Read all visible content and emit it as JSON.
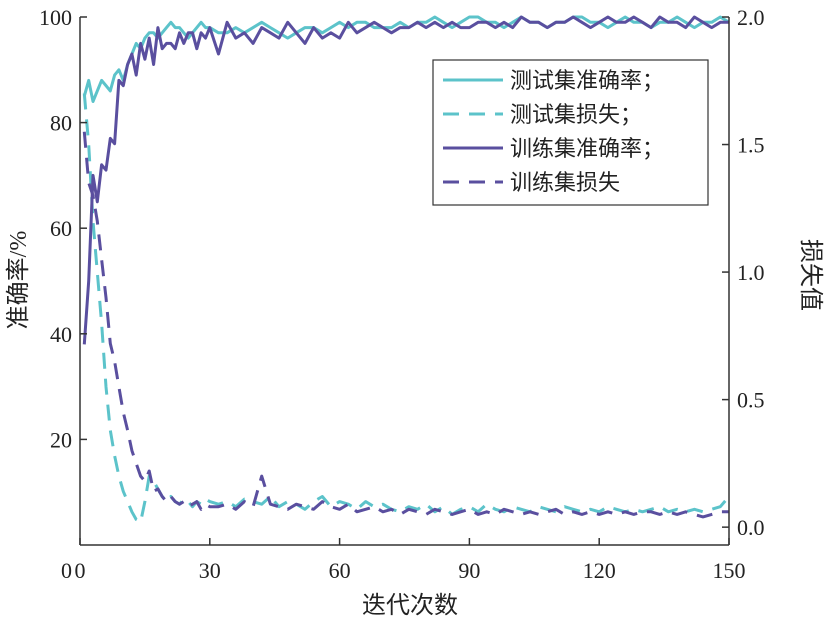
{
  "chart_data": {
    "type": "line",
    "xlabel": "迭代次数",
    "ylabel_left": "准确率/%",
    "ylabel_right": "损失值",
    "xlim": [
      0,
      150
    ],
    "ylim_left": [
      0,
      100
    ],
    "ylim_right": [
      -0.07,
      2.0
    ],
    "x_ticks": [
      "0",
      "30",
      "60",
      "90",
      "120",
      "150"
    ],
    "y_ticks_left": [
      "20",
      "40",
      "60",
      "80",
      "100"
    ],
    "y_ticks_right": [
      "0.0",
      "0.5",
      "1.0",
      "1.5",
      "2.0"
    ],
    "legend_position": "top-right",
    "x": [
      1,
      2,
      3,
      4,
      5,
      6,
      7,
      8,
      9,
      10,
      11,
      12,
      13,
      14,
      15,
      16,
      17,
      18,
      19,
      20,
      21,
      22,
      23,
      24,
      25,
      26,
      27,
      28,
      29,
      30,
      32,
      34,
      36,
      38,
      40,
      42,
      44,
      46,
      48,
      50,
      52,
      54,
      56,
      58,
      60,
      62,
      64,
      66,
      68,
      70,
      72,
      74,
      76,
      78,
      80,
      82,
      84,
      86,
      88,
      90,
      92,
      94,
      96,
      98,
      100,
      102,
      104,
      106,
      108,
      110,
      112,
      114,
      116,
      118,
      120,
      122,
      124,
      126,
      128,
      130,
      132,
      134,
      136,
      138,
      140,
      142,
      144,
      146,
      148,
      150
    ],
    "series": [
      {
        "name": "测试集准确率；",
        "axis": "left",
        "style": "solid",
        "color": "#5cc3ca",
        "values": [
          85,
          88,
          84,
          86,
          88,
          87,
          86,
          89,
          90,
          88,
          91,
          93,
          95,
          94,
          96,
          97,
          97,
          96,
          97,
          98,
          99,
          98,
          98,
          97,
          96,
          97,
          98,
          99,
          98,
          98,
          97,
          97,
          98,
          97,
          98,
          99,
          98,
          97,
          96,
          97,
          98,
          98,
          97,
          98,
          99,
          98,
          99,
          99,
          98,
          98,
          98,
          99,
          98,
          99,
          99,
          100,
          99,
          98,
          99,
          100,
          100,
          99,
          99,
          98,
          99,
          100,
          99,
          99,
          98,
          99,
          99,
          100,
          100,
          99,
          99,
          98,
          99,
          100,
          99,
          99,
          98,
          99,
          99,
          100,
          99,
          98,
          99,
          99,
          100,
          99
        ]
      },
      {
        "name": "测试集损失；",
        "axis": "right",
        "style": "dashed",
        "color": "#5cc3ca",
        "values": [
          1.7,
          1.5,
          1.2,
          1.0,
          0.8,
          0.55,
          0.38,
          0.28,
          0.2,
          0.14,
          0.1,
          0.06,
          0.03,
          0.02,
          0.1,
          0.2,
          0.18,
          0.15,
          0.12,
          0.1,
          0.12,
          0.1,
          0.09,
          0.11,
          0.1,
          0.08,
          0.1,
          0.09,
          0.11,
          0.1,
          0.09,
          0.1,
          0.08,
          0.11,
          0.1,
          0.09,
          0.12,
          0.08,
          0.1,
          0.09,
          0.07,
          0.1,
          0.12,
          0.08,
          0.1,
          0.09,
          0.07,
          0.1,
          0.08,
          0.09,
          0.07,
          0.06,
          0.08,
          0.07,
          0.09,
          0.06,
          0.08,
          0.05,
          0.07,
          0.08,
          0.06,
          0.09,
          0.07,
          0.06,
          0.08,
          0.07,
          0.06,
          0.08,
          0.07,
          0.06,
          0.08,
          0.07,
          0.06,
          0.07,
          0.06,
          0.08,
          0.07,
          0.06,
          0.07,
          0.06,
          0.07,
          0.08,
          0.06,
          0.07,
          0.06,
          0.07,
          0.06,
          0.07,
          0.08,
          0.12
        ]
      },
      {
        "name": "训练集准确率；",
        "axis": "left",
        "style": "solid",
        "color": "#5a4f9f",
        "values": [
          38,
          50,
          70,
          65,
          72,
          71,
          77,
          76,
          88,
          87,
          91,
          93,
          89,
          95,
          92,
          96,
          91,
          98,
          94,
          95,
          95,
          94,
          97,
          95,
          97,
          97,
          94,
          97,
          96,
          98,
          93,
          99,
          96,
          97,
          95,
          98,
          97,
          96,
          99,
          97,
          95,
          98,
          96,
          97,
          96,
          99,
          97,
          98,
          99,
          98,
          97,
          98,
          98,
          99,
          98,
          99,
          98,
          99,
          98,
          98,
          99,
          99,
          98,
          99,
          98,
          100,
          99,
          99,
          98,
          99,
          99,
          100,
          99,
          98,
          99,
          100,
          99,
          99,
          100,
          99,
          98,
          100,
          99,
          99,
          98,
          100,
          99,
          98,
          99,
          99
        ]
      },
      {
        "name": "训练集损失",
        "axis": "right",
        "style": "dashed",
        "color": "#5a4f9f",
        "values": [
          1.55,
          1.35,
          1.3,
          1.2,
          1.05,
          0.9,
          0.72,
          0.65,
          0.55,
          0.45,
          0.38,
          0.3,
          0.25,
          0.2,
          0.18,
          0.22,
          0.14,
          0.15,
          0.12,
          0.1,
          0.12,
          0.1,
          0.09,
          0.1,
          0.08,
          0.09,
          0.1,
          0.07,
          0.09,
          0.08,
          0.08,
          0.09,
          0.07,
          0.1,
          0.08,
          0.2,
          0.09,
          0.08,
          0.07,
          0.09,
          0.08,
          0.07,
          0.1,
          0.08,
          0.07,
          0.09,
          0.06,
          0.07,
          0.08,
          0.06,
          0.07,
          0.05,
          0.07,
          0.06,
          0.05,
          0.07,
          0.06,
          0.05,
          0.06,
          0.07,
          0.05,
          0.06,
          0.05,
          0.07,
          0.06,
          0.05,
          0.06,
          0.05,
          0.06,
          0.07,
          0.05,
          0.06,
          0.05,
          0.06,
          0.05,
          0.06,
          0.05,
          0.06,
          0.05,
          0.06,
          0.06,
          0.05,
          0.06,
          0.05,
          0.06,
          0.05,
          0.04,
          0.05,
          0.06,
          0.06
        ]
      }
    ]
  }
}
